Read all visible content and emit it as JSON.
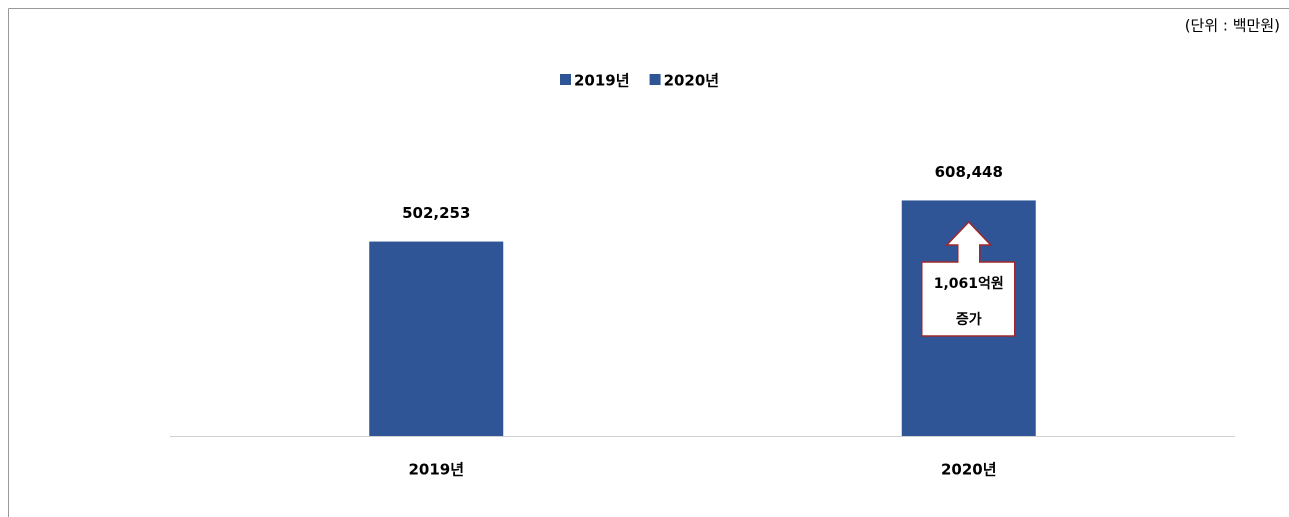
{
  "chart_data": {
    "type": "bar",
    "unit_note": "(단위 : 백만원)",
    "categories": [
      "2019년",
      "2020년"
    ],
    "series": [
      {
        "name": "2019년",
        "color": "#2f5597",
        "values": [
          502253,
          null
        ],
        "value_labels": [
          "502,253",
          null
        ]
      },
      {
        "name": "2020년",
        "color": "#2f5597",
        "values": [
          null,
          608448
        ],
        "value_labels": [
          null,
          "608,448"
        ]
      }
    ],
    "ylim": [
      0,
      700000
    ],
    "legend": "top",
    "annotation_lines": [
      "1,061억원",
      "증가"
    ]
  }
}
